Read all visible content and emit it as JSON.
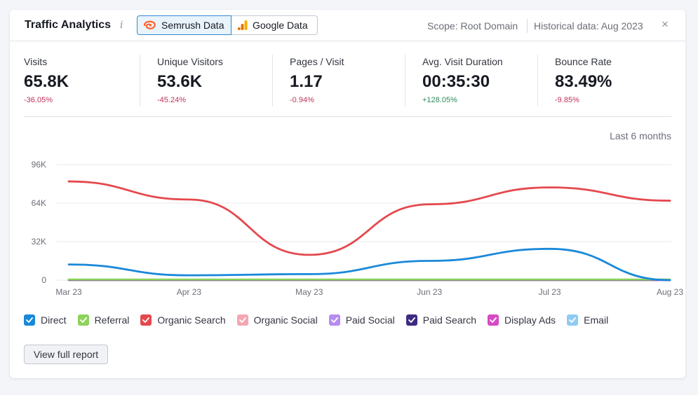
{
  "header": {
    "title": "Traffic Analytics",
    "info_icon": "i",
    "source_tabs": [
      {
        "label": "Semrush Data",
        "icon": "semrush-logo-icon",
        "active": true
      },
      {
        "label": "Google Data",
        "icon": "google-analytics-icon",
        "active": false
      }
    ],
    "scope": "Scope: Root Domain",
    "historical": "Historical data: Aug 2023",
    "close_icon": "×"
  },
  "metrics": [
    {
      "label": "Visits",
      "value": "65.8K",
      "delta": "-36.05%",
      "trend": "negative"
    },
    {
      "label": "Unique Visitors",
      "value": "53.6K",
      "delta": "-45.24%",
      "trend": "negative"
    },
    {
      "label": "Pages / Visit",
      "value": "1.17",
      "delta": "-0.94%",
      "trend": "negative"
    },
    {
      "label": "Avg. Visit Duration",
      "value": "00:35:30",
      "delta": "+128.05%",
      "trend": "positive"
    },
    {
      "label": "Bounce Rate",
      "value": "83.49%",
      "delta": "-9.85%",
      "trend": "negative"
    }
  ],
  "period": "Last 6 months",
  "chart_data": {
    "type": "line",
    "categories": [
      "Mar 23",
      "Apr 23",
      "May 23",
      "Jun 23",
      "Jul 23",
      "Aug 23"
    ],
    "y_ticks": [
      "96K",
      "64K",
      "32K",
      "0"
    ],
    "ylim": [
      0,
      96000
    ],
    "grid": true,
    "series": [
      {
        "name": "Organic Search",
        "color": "#e5484d",
        "values": [
          82000,
          67000,
          21000,
          63000,
          77000,
          66000
        ]
      },
      {
        "name": "Direct",
        "color": "#1a88d9",
        "values": [
          13000,
          4000,
          5000,
          16000,
          26000,
          0
        ]
      },
      {
        "name": "Referral",
        "color": "#8cd25b",
        "values": [
          500,
          500,
          500,
          500,
          500,
          500
        ]
      },
      {
        "name": "Paid Search",
        "color": "#3f2a83",
        "values": [
          300,
          300,
          300,
          300,
          300,
          300
        ]
      },
      {
        "name": "Organic Social",
        "color": "#f4a6b3",
        "values": [
          200,
          200,
          200,
          200,
          200,
          200
        ]
      },
      {
        "name": "Paid Social",
        "color": "#b58cf2",
        "values": [
          150,
          150,
          150,
          150,
          150,
          150
        ]
      },
      {
        "name": "Display Ads",
        "color": "#d64ac4",
        "values": [
          100,
          100,
          100,
          100,
          100,
          100
        ]
      },
      {
        "name": "Email",
        "color": "#8fcbf2",
        "values": [
          100,
          100,
          100,
          100,
          100,
          100
        ]
      }
    ]
  },
  "legend": [
    {
      "label": "Direct",
      "color": "#1a88d9",
      "checked": true
    },
    {
      "label": "Referral",
      "color": "#8cd25b",
      "checked": true
    },
    {
      "label": "Organic Search",
      "color": "#e5484d",
      "checked": true
    },
    {
      "label": "Organic Social",
      "color": "#f4a6b3",
      "checked": true
    },
    {
      "label": "Paid Social",
      "color": "#b58cf2",
      "checked": true
    },
    {
      "label": "Paid Search",
      "color": "#3f2a83",
      "checked": true
    },
    {
      "label": "Display Ads",
      "color": "#d64ac4",
      "checked": true
    },
    {
      "label": "Email",
      "color": "#8fcbf2",
      "checked": true
    }
  ],
  "footer": {
    "report_button": "View full report"
  }
}
